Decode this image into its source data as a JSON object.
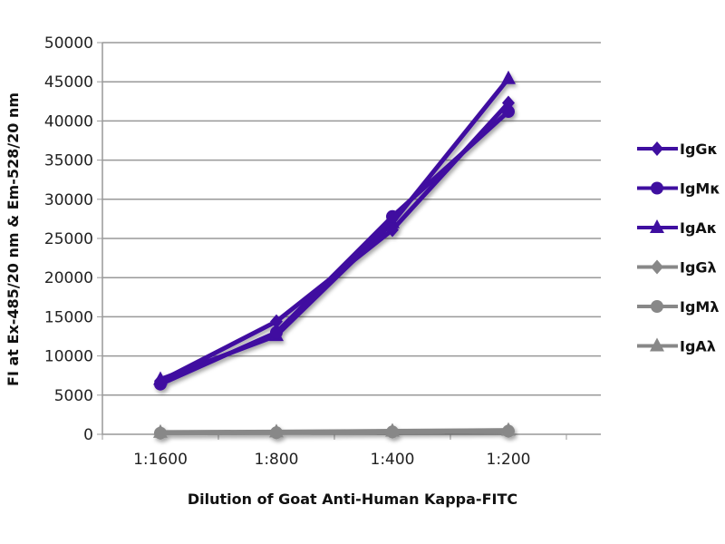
{
  "chart_data": {
    "type": "line",
    "title": "",
    "xlabel": "Dilution of Goat Anti-Human Kappa-FITC",
    "ylabel": "FI at Ex-485/20 nm & Em-528/20 nm",
    "categories": [
      "1:1600",
      "1:800",
      "1:400",
      "1:200"
    ],
    "ylim": [
      0,
      50000
    ],
    "yticks": [
      0,
      5000,
      10000,
      15000,
      20000,
      25000,
      30000,
      35000,
      40000,
      45000,
      50000
    ],
    "grid": true,
    "legend_position": "right",
    "series": [
      {
        "name": "IgGκ",
        "marker": "diamond",
        "color": "#3f0fa0",
        "values": [
          6800,
          14400,
          26100,
          42300
        ]
      },
      {
        "name": "IgMκ",
        "marker": "circle",
        "color": "#3f0fa0",
        "values": [
          6400,
          13000,
          27800,
          41200
        ]
      },
      {
        "name": "IgAκ",
        "marker": "triangle",
        "color": "#3f0fa0",
        "values": [
          7000,
          12600,
          27000,
          45400
        ]
      },
      {
        "name": "IgGλ",
        "marker": "diamond",
        "color": "#888888",
        "values": [
          200,
          250,
          350,
          450
        ]
      },
      {
        "name": "IgMλ",
        "marker": "circle",
        "color": "#888888",
        "values": [
          150,
          200,
          300,
          400
        ]
      },
      {
        "name": "IgAλ",
        "marker": "triangle",
        "color": "#888888",
        "values": [
          250,
          300,
          400,
          500
        ]
      }
    ]
  }
}
